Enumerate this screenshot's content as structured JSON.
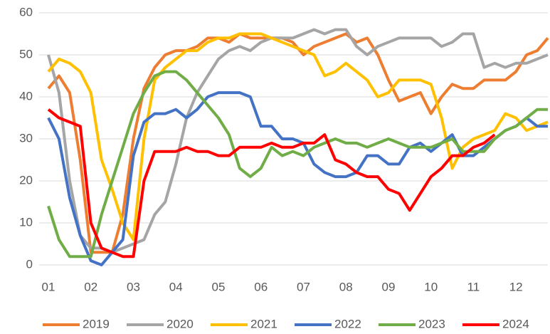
{
  "chart_data": {
    "type": "line",
    "categories": [
      "01",
      null,
      null,
      null,
      "02",
      null,
      null,
      null,
      "03",
      null,
      null,
      null,
      "04",
      null,
      null,
      null,
      "05",
      null,
      null,
      null,
      "06",
      null,
      null,
      null,
      "07",
      null,
      null,
      null,
      "08",
      null,
      null,
      null,
      "09",
      null,
      null,
      null,
      "10",
      null,
      null,
      null,
      "11",
      null,
      null,
      null,
      "12",
      null,
      null,
      null
    ],
    "ylim": [
      0,
      60
    ],
    "yticks": [
      0,
      10,
      20,
      30,
      40,
      50,
      60
    ],
    "grid": true,
    "legend": "bottom",
    "series": [
      {
        "name": "2019",
        "color": "#ED7D31",
        "values": [
          42,
          45,
          41,
          25,
          3,
          3,
          3,
          12,
          30,
          42,
          47,
          50,
          51,
          51,
          52,
          54,
          54,
          53,
          55,
          54,
          54,
          54,
          54,
          53,
          50,
          52,
          53,
          54,
          55,
          53,
          54,
          50,
          44,
          39,
          40,
          41,
          36,
          40,
          43,
          42,
          42,
          44,
          44,
          44,
          46,
          50,
          51,
          54
        ]
      },
      {
        "name": "2020",
        "color": "#A5A5A5",
        "values": [
          50,
          41,
          20,
          7,
          4,
          4,
          3,
          4,
          5,
          6,
          12,
          15,
          24,
          35,
          41,
          45,
          49,
          51,
          52,
          51,
          53,
          54,
          54,
          54,
          55,
          56,
          55,
          56,
          56,
          52,
          50,
          52,
          53,
          54,
          54,
          54,
          54,
          52,
          53,
          55,
          55,
          47,
          48,
          47,
          48,
          48,
          49,
          50
        ]
      },
      {
        "name": "2021",
        "color": "#FFC000",
        "values": [
          46,
          49,
          48,
          46,
          41,
          25,
          18,
          10,
          6,
          30,
          44,
          47,
          49,
          51,
          51,
          53,
          54,
          54,
          55,
          55,
          55,
          54,
          53,
          52,
          51,
          50,
          45,
          46,
          48,
          46,
          44,
          40,
          41,
          44,
          44,
          44,
          43,
          35,
          23,
          28,
          30,
          31,
          32,
          36,
          35,
          32,
          33,
          34
        ]
      },
      {
        "name": "2022",
        "color": "#4472C4",
        "values": [
          35,
          30,
          16,
          7,
          1,
          0,
          3,
          6,
          26,
          34,
          36,
          36,
          37,
          35,
          37,
          40,
          41,
          41,
          41,
          40,
          33,
          33,
          30,
          30,
          29,
          24,
          22,
          21,
          21,
          22,
          26,
          26,
          24,
          24,
          28,
          29,
          27,
          29,
          31,
          26,
          26,
          28,
          30,
          32,
          33,
          35,
          33,
          33
        ]
      },
      {
        "name": "2023",
        "color": "#70AD47",
        "values": [
          14,
          6,
          2,
          2,
          2,
          12,
          20,
          28,
          36,
          41,
          45,
          46,
          46,
          44,
          41,
          38,
          35,
          31,
          23,
          21,
          23,
          28,
          26,
          27,
          26,
          28,
          29,
          30,
          29,
          29,
          28,
          29,
          30,
          29,
          28,
          28,
          28,
          29,
          30,
          27,
          27,
          27,
          30,
          32,
          33,
          35,
          37,
          37
        ]
      },
      {
        "name": "2024",
        "color": "#FF0000",
        "values": [
          37,
          35,
          34,
          33,
          10,
          4,
          3,
          2,
          2,
          20,
          27,
          27,
          27,
          28,
          27,
          27,
          26,
          26,
          28,
          28,
          28,
          29,
          28,
          28,
          29,
          29,
          31,
          25,
          24,
          22,
          21,
          21,
          18,
          17,
          13,
          17,
          21,
          23,
          26,
          26,
          28,
          29,
          31,
          null,
          null,
          null,
          null,
          null
        ]
      }
    ]
  }
}
